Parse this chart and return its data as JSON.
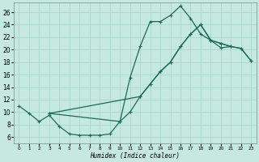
{
  "xlabel": "Humidex (Indice chaleur)",
  "bg_color": "#c5e8e0",
  "grid_color": "#aad4cc",
  "line_color": "#1a6b5a",
  "xlim": [
    -0.5,
    23.5
  ],
  "ylim": [
    5.0,
    27.5
  ],
  "xticks": [
    0,
    1,
    2,
    3,
    4,
    5,
    6,
    7,
    8,
    9,
    10,
    11,
    12,
    13,
    14,
    15,
    16,
    17,
    18,
    19,
    20,
    21,
    22,
    23
  ],
  "yticks": [
    6,
    8,
    10,
    12,
    14,
    16,
    18,
    20,
    22,
    24,
    26
  ],
  "curve1_x": [
    0,
    1,
    2,
    3,
    4,
    5,
    6,
    7,
    8,
    9,
    10,
    11,
    12,
    13,
    14,
    15,
    16,
    17,
    18,
    19,
    20,
    21
  ],
  "curve1_y": [
    11.0,
    9.8,
    8.5,
    9.5,
    7.7,
    6.5,
    6.3,
    6.3,
    6.3,
    6.5,
    8.5,
    15.5,
    20.5,
    24.5,
    24.5,
    25.5,
    27.0,
    25.0,
    22.5,
    21.5,
    20.3,
    20.5
  ],
  "curve2_x": [
    3,
    10,
    11,
    12,
    13,
    14,
    15,
    16,
    17,
    18,
    19,
    20,
    21,
    22,
    23
  ],
  "curve2_y": [
    9.8,
    8.5,
    10.0,
    12.5,
    14.5,
    16.5,
    18.0,
    20.5,
    22.5,
    24.0,
    21.5,
    21.0,
    20.5,
    20.2,
    18.2
  ],
  "curve3_x": [
    3,
    12,
    13,
    14,
    15,
    16,
    17,
    18,
    19,
    20,
    21,
    22,
    23
  ],
  "curve3_y": [
    9.8,
    12.5,
    14.5,
    16.5,
    18.0,
    20.5,
    22.5,
    24.0,
    21.5,
    21.0,
    20.5,
    20.2,
    18.2
  ]
}
